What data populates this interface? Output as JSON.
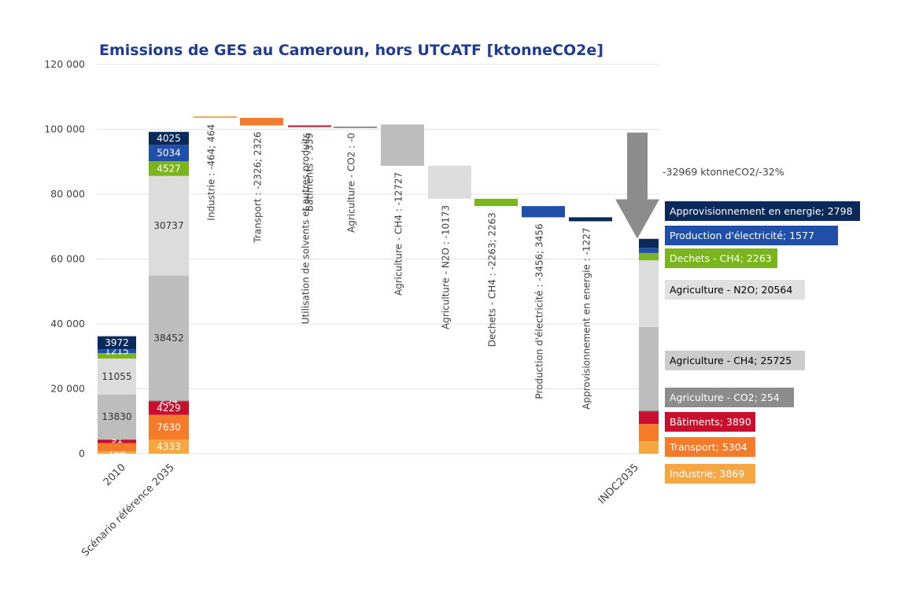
{
  "chart_data": {
    "type": "bar",
    "title": "Emissions de GES au Cameroun, hors UTCATF [ktonneCO2e]",
    "ylim": [
      0,
      120000
    ],
    "yticks": [
      0,
      20000,
      40000,
      60000,
      80000,
      100000,
      120000
    ],
    "ytick_labels": [
      "0",
      "20 000",
      "40 000",
      "60 000",
      "80 000",
      "100 000",
      "120 000"
    ],
    "grid": true,
    "stacked_bars": [
      {
        "category": "2010",
        "segments": [
          {
            "name": "Industrie",
            "value": 744,
            "label": "744",
            "color": "#f5a742"
          },
          {
            "name": "Transport",
            "value": 2500,
            "label": "",
            "color": "#f47b2a"
          },
          {
            "name": "Bâtiments",
            "value": 1100,
            "label": "",
            "color": "#c8102e"
          },
          {
            "name": "Agriculture - CO2",
            "value": 91,
            "label": "91",
            "color": "#8c8c8c"
          },
          {
            "name": "Agriculture - CH4",
            "value": 13830,
            "label": "13830",
            "color": "#bdbdbd"
          },
          {
            "name": "Agriculture - N2O",
            "value": 11055,
            "label": "11055",
            "color": "#dcdcdc"
          },
          {
            "name": "Dechets - CH4",
            "value": 1700,
            "label": "",
            "color": "#7ab51d"
          },
          {
            "name": "Production d'électricité",
            "value": 1215,
            "label": "1215",
            "color": "#1f4fa8"
          },
          {
            "name": "Approvisionnement en energie",
            "value": 3972,
            "label": "3972",
            "color": "#0b2a5c"
          }
        ]
      },
      {
        "category": "Scénario référence 2035",
        "segments": [
          {
            "name": "Industrie",
            "value": 4333,
            "label": "4333",
            "color": "#f5a742"
          },
          {
            "name": "Transport",
            "value": 7630,
            "label": "7630",
            "color": "#f47b2a"
          },
          {
            "name": "Bâtiments",
            "value": 4229,
            "label": "4229",
            "color": "#c8102e"
          },
          {
            "name": "Agriculture - CO2",
            "value": 254,
            "label": "254",
            "color": "#8c8c8c"
          },
          {
            "name": "Agriculture - CH4",
            "value": 38452,
            "label": "38452",
            "color": "#bdbdbd"
          },
          {
            "name": "Agriculture - N2O",
            "value": 30737,
            "label": "30737",
            "color": "#dcdcdc"
          },
          {
            "name": "Dechets - CH4",
            "value": 4527,
            "label": "4527",
            "color": "#7ab51d"
          },
          {
            "name": "Production d'électricité",
            "value": 5034,
            "label": "5034",
            "color": "#1f4fa8"
          },
          {
            "name": "Approvisionnement en energie",
            "value": 4025,
            "label": "4025",
            "color": "#0b2a5c"
          }
        ]
      },
      {
        "category": "INDC2035",
        "segments": [
          {
            "name": "Industrie",
            "value": 3869,
            "color": "#f5a742"
          },
          {
            "name": "Transport",
            "value": 5304,
            "color": "#f47b2a"
          },
          {
            "name": "Bâtiments",
            "value": 3890,
            "color": "#c8102e"
          },
          {
            "name": "Agriculture - CO2",
            "value": 254,
            "color": "#8c8c8c"
          },
          {
            "name": "Agriculture - CH4",
            "value": 25725,
            "color": "#bdbdbd"
          },
          {
            "name": "Agriculture - N2O",
            "value": 20564,
            "color": "#dcdcdc"
          },
          {
            "name": "Dechets - CH4",
            "value": 2263,
            "color": "#7ab51d"
          },
          {
            "name": "Production d'électricité",
            "value": 1577,
            "color": "#1f4fa8"
          },
          {
            "name": "Approvisionnement en energie",
            "value": 2798,
            "color": "#0b2a5c"
          }
        ]
      }
    ],
    "waterfall_steps": [
      {
        "label": "Industrie : -464; 464",
        "from": 104000,
        "to": 103536,
        "color": "#f5a742"
      },
      {
        "label": "Transport : -2326; 2326",
        "from": 103536,
        "to": 101210,
        "color": "#f47b2a"
      },
      {
        "label": "Utilisation de solvents et autres produits",
        "overlap_label": "Bâtiments : -339",
        "from": 101210,
        "to": 100871,
        "color": "#c8102e"
      },
      {
        "label": "Agriculture - CO2 : -0",
        "from": 100871,
        "to": 100871,
        "color": "#8c8c8c"
      },
      {
        "label": "Agriculture - CH4 : -12727",
        "from": 101500,
        "to": 88773,
        "color": "#bdbdbd"
      },
      {
        "label": "Agriculture - N2O : -10173",
        "from": 88773,
        "to": 78600,
        "color": "#dcdcdc"
      },
      {
        "label": "Dechets - CH4 : -2263; 2263",
        "from": 78600,
        "to": 76337,
        "color": "#7ab51d"
      },
      {
        "label": "Production d'électricité : -3456; 3456",
        "from": 76337,
        "to": 72881,
        "color": "#1f4fa8"
      },
      {
        "label": "Approvisionnement en energie : -1227",
        "from": 72881,
        "to": 71654,
        "color": "#0b2a5c"
      }
    ],
    "reduction_arrow": {
      "from": 99000,
      "to": 66300,
      "label": "-32969 ktonneCO2/-32%",
      "color": "#8c8c8c"
    },
    "indc_labels": [
      {
        "text": "Approvisionnement en energie; 2798",
        "bg": "#0b2a5c",
        "fg": "#ffffff"
      },
      {
        "text": "Production d'électricité; 1577",
        "bg": "#1f4fa8",
        "fg": "#ffffff"
      },
      {
        "text": "Dechets - CH4; 2263",
        "bg": "#7ab51d",
        "fg": "#ffffff"
      },
      {
        "text": "Agriculture - N2O; 20564",
        "bg": "#e0e0e0",
        "fg": "#000000"
      },
      {
        "text": "Agriculture - CH4; 25725",
        "bg": "#cccccc",
        "fg": "#000000"
      },
      {
        "text": "Agriculture - CO2; 254",
        "bg": "#8c8c8c",
        "fg": "#ffffff"
      },
      {
        "text": "Bâtiments; 3890",
        "bg": "#c8102e",
        "fg": "#ffffff"
      },
      {
        "text": "Transport; 5304",
        "bg": "#f47b2a",
        "fg": "#ffffff"
      },
      {
        "text": "Industrie; 3869",
        "bg": "#f5a742",
        "fg": "#ffffff"
      }
    ]
  }
}
